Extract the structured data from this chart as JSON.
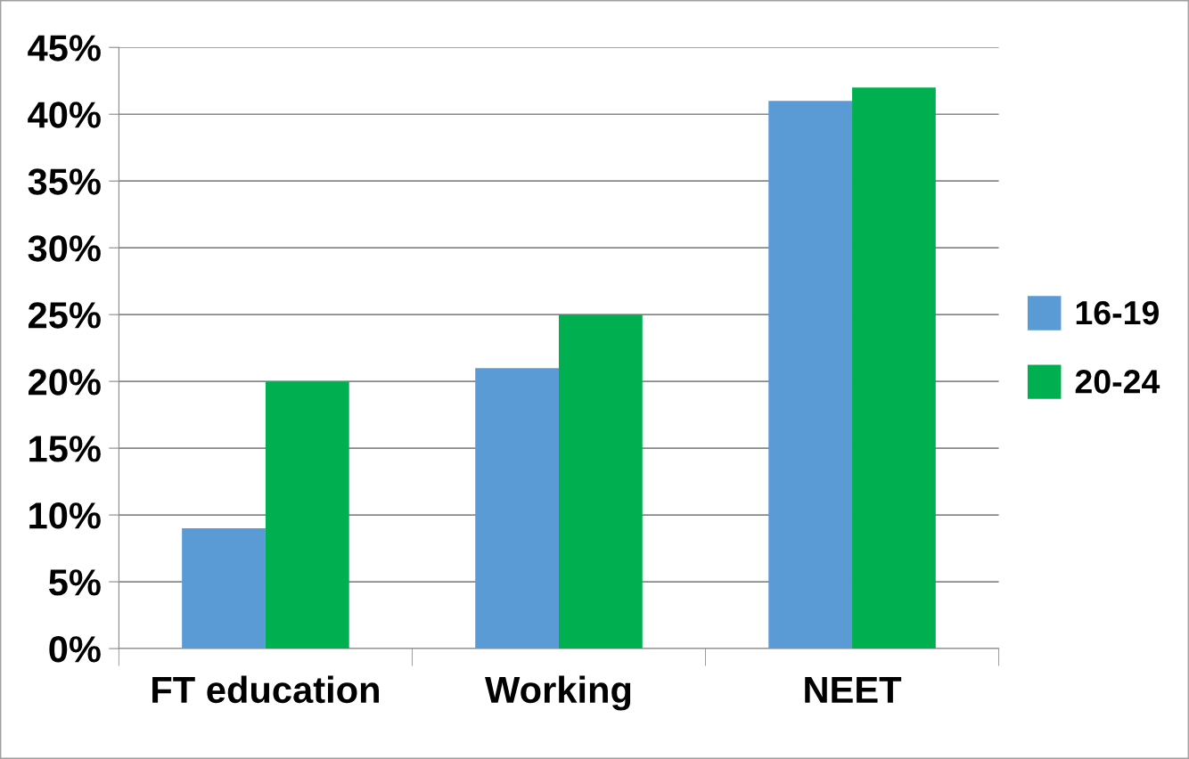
{
  "chart_data": {
    "type": "bar",
    "categories": [
      "FT education",
      "Working",
      "NEET"
    ],
    "series": [
      {
        "name": "16-19",
        "color": "#5b9bd5",
        "values": [
          9,
          21,
          41
        ]
      },
      {
        "name": "20-24",
        "color": "#00b050",
        "values": [
          20,
          25,
          42
        ]
      }
    ],
    "ylim": [
      0,
      45
    ],
    "yticks": [
      {
        "value": 0,
        "label": "0%"
      },
      {
        "value": 5,
        "label": "5%"
      },
      {
        "value": 10,
        "label": "10%"
      },
      {
        "value": 15,
        "label": "15%"
      },
      {
        "value": 20,
        "label": "20%"
      },
      {
        "value": 25,
        "label": "25%"
      },
      {
        "value": 30,
        "label": "30%"
      },
      {
        "value": 35,
        "label": "35%"
      },
      {
        "value": 40,
        "label": "40%"
      },
      {
        "value": 45,
        "label": "45%"
      }
    ],
    "grid": "y",
    "legend": "right"
  }
}
